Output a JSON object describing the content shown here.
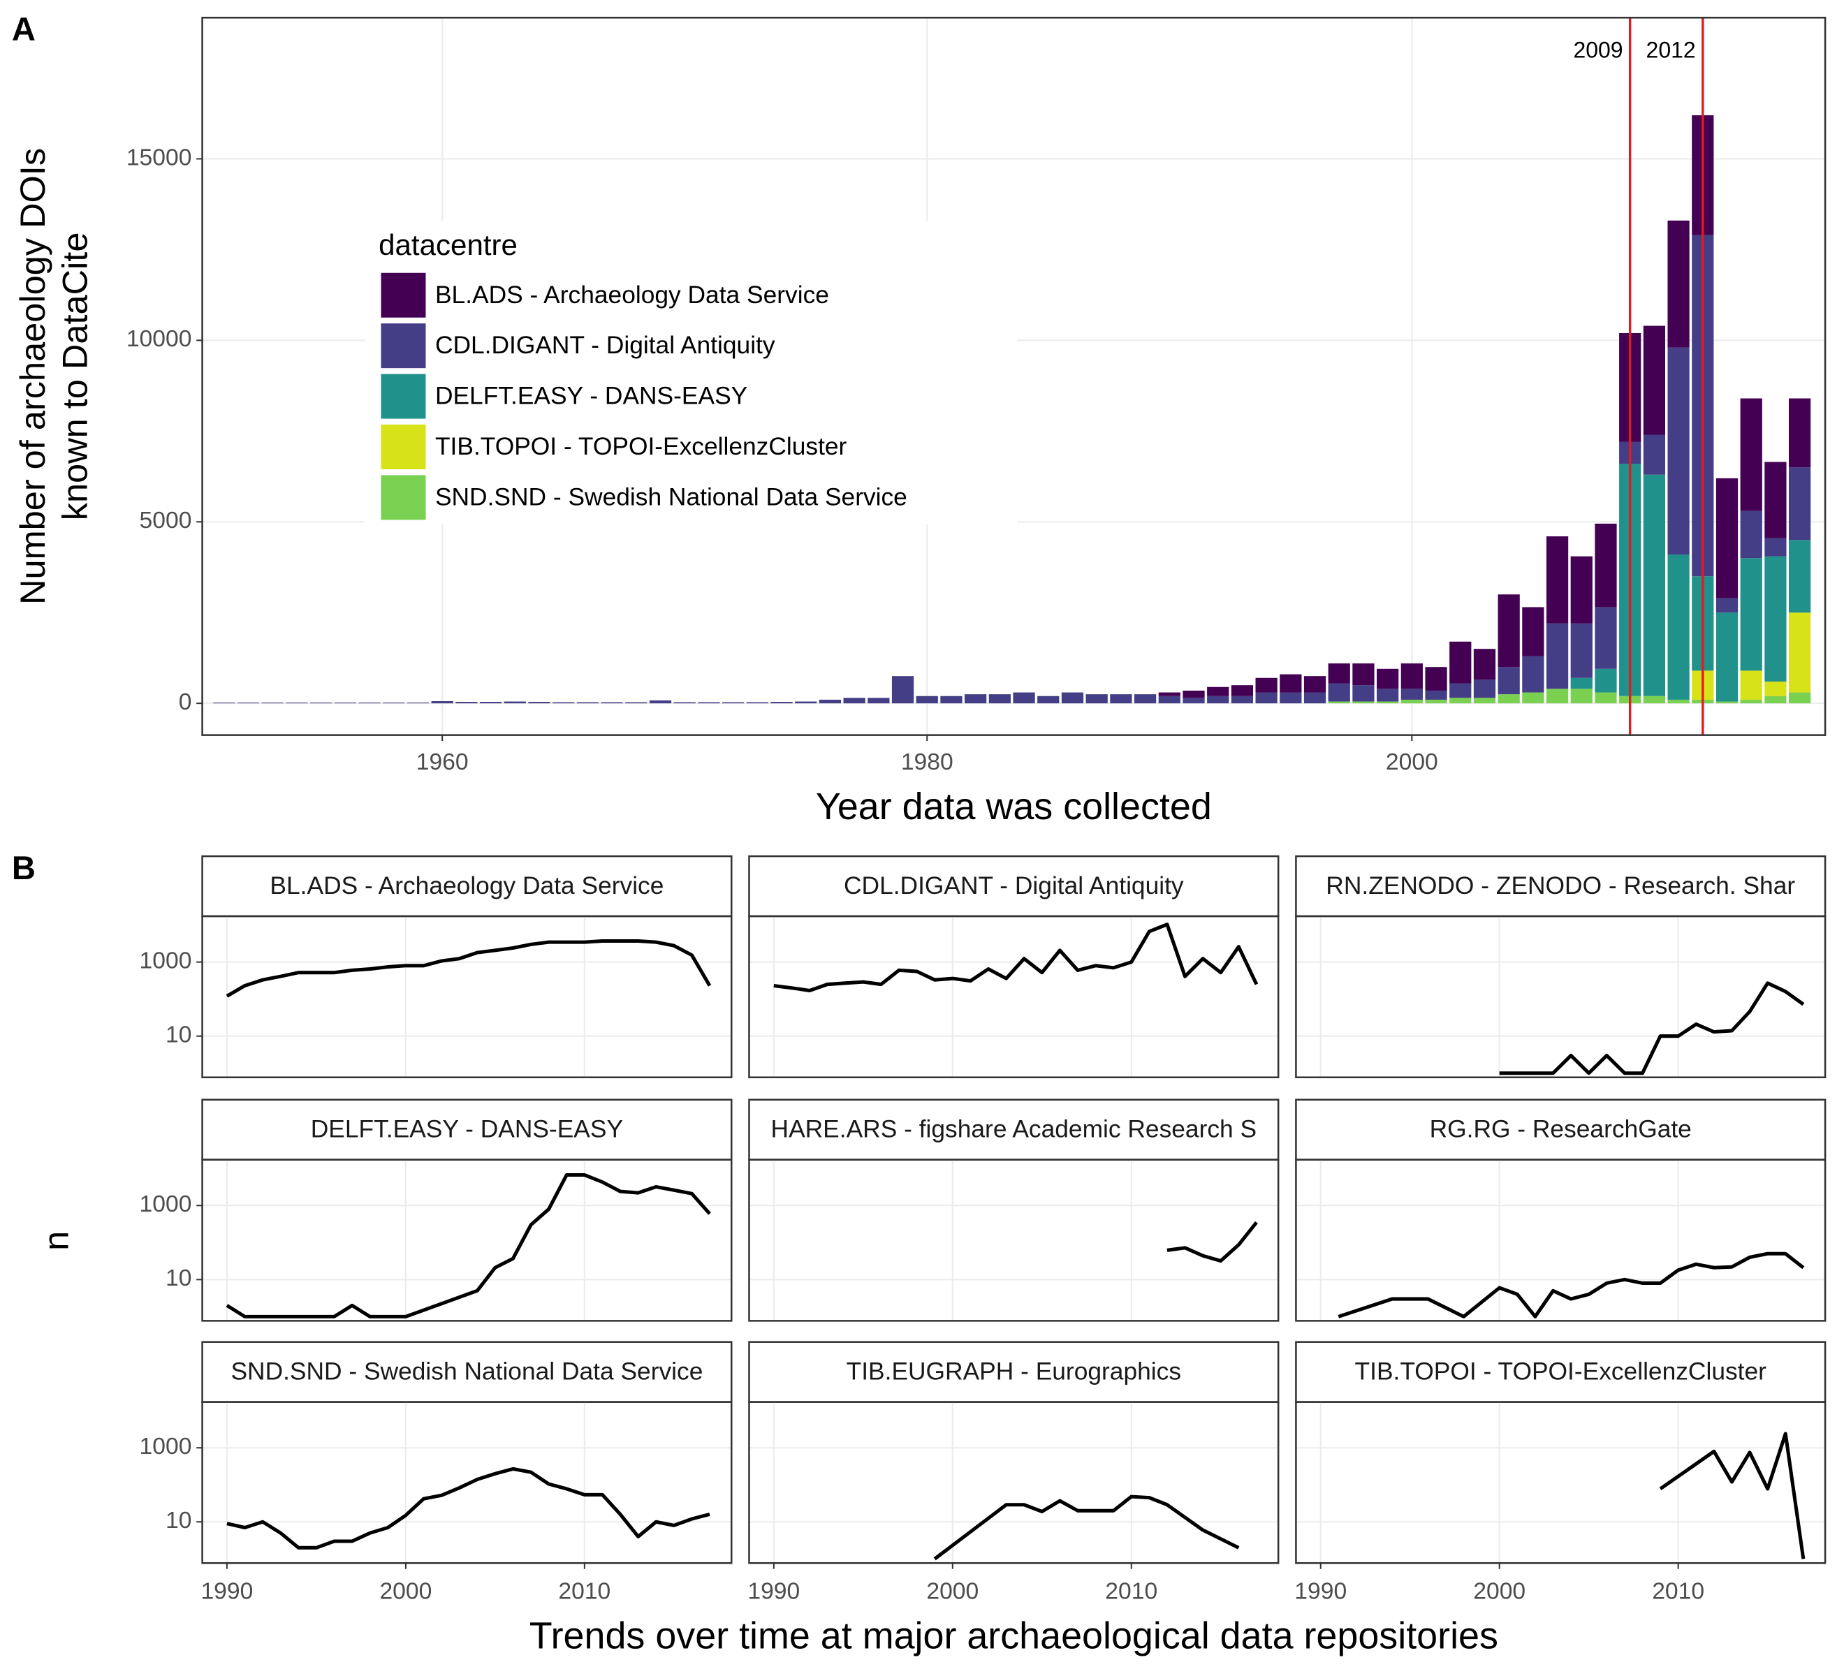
{
  "chart_data": [
    {
      "type": "stacked_bar",
      "panel_label": "A",
      "y_label": [
        "Number of archaeology DOIs",
        "known to DataCite"
      ],
      "x_label": "Year data was collected",
      "legend_title": "datacentre",
      "xlim": [
        1950.1,
        2017.05
      ],
      "xticks": [
        1960,
        1980,
        2000
      ],
      "ylim": [
        -875,
        18890
      ],
      "yticks": [
        0,
        5000,
        10000,
        15000
      ],
      "grid": true,
      "x": [
        1951,
        1952,
        1953,
        1954,
        1955,
        1956,
        1957,
        1958,
        1959,
        1960,
        1961,
        1962,
        1963,
        1964,
        1965,
        1966,
        1967,
        1968,
        1969,
        1970,
        1971,
        1972,
        1973,
        1974,
        1975,
        1976,
        1977,
        1978,
        1979,
        1980,
        1981,
        1982,
        1983,
        1984,
        1985,
        1986,
        1987,
        1988,
        1989,
        1990,
        1991,
        1992,
        1993,
        1994,
        1995,
        1996,
        1997,
        1998,
        1999,
        2000,
        2001,
        2002,
        2003,
        2004,
        2005,
        2006,
        2007,
        2008,
        2009,
        2010,
        2011,
        2012,
        2013,
        2014,
        2015,
        2016
      ],
      "series": [
        {
          "name": "BL.ADS - Archaeology Data Service",
          "color": "#440154",
          "values": [
            0,
            0,
            0,
            0,
            0,
            0,
            0,
            0,
            0,
            0,
            0,
            0,
            0,
            0,
            0,
            0,
            0,
            0,
            0,
            0,
            0,
            0,
            0,
            0,
            0,
            0,
            0,
            0,
            0,
            0,
            0,
            0,
            0,
            0,
            0,
            0,
            0,
            0,
            0,
            100,
            200,
            250,
            300,
            400,
            500,
            450,
            550,
            600,
            550,
            700,
            650,
            1150,
            850,
            2000,
            1350,
            2400,
            1850,
            2300,
            3000,
            3000,
            3500,
            3300,
            3300,
            3100,
            2100,
            1900
          ]
        },
        {
          "name": "CDL.DIGANT - Digital Antiquity",
          "color": "#433E85",
          "values": [
            20,
            20,
            20,
            20,
            20,
            20,
            20,
            20,
            20,
            60,
            40,
            40,
            50,
            40,
            30,
            30,
            30,
            30,
            80,
            30,
            30,
            30,
            30,
            40,
            50,
            100,
            150,
            150,
            750,
            200,
            200,
            250,
            250,
            300,
            200,
            300,
            250,
            250,
            250,
            200,
            150,
            200,
            200,
            300,
            300,
            300,
            500,
            450,
            350,
            300,
            250,
            400,
            500,
            750,
            1000,
            1800,
            1500,
            1700,
            600,
            1100,
            5700,
            9400,
            400,
            1300,
            500,
            2000
          ]
        },
        {
          "name": "DELFT.EASY - DANS-EASY",
          "color": "#21918C",
          "values": [
            0,
            0,
            0,
            0,
            0,
            0,
            0,
            0,
            0,
            0,
            0,
            0,
            0,
            0,
            0,
            0,
            0,
            0,
            0,
            0,
            0,
            0,
            0,
            0,
            0,
            0,
            0,
            0,
            0,
            0,
            0,
            0,
            0,
            0,
            0,
            0,
            0,
            0,
            0,
            0,
            0,
            0,
            0,
            0,
            0,
            0,
            0,
            0,
            0,
            0,
            0,
            0,
            0,
            0,
            0,
            0,
            300,
            650,
            6400,
            6100,
            4000,
            2600,
            2450,
            3100,
            3450,
            2000
          ]
        },
        {
          "name": "TIB.TOPOI - TOPOI-ExcellenzCluster",
          "color": "#D8E219",
          "values": [
            0,
            0,
            0,
            0,
            0,
            0,
            0,
            0,
            0,
            0,
            0,
            0,
            0,
            0,
            0,
            0,
            0,
            0,
            0,
            0,
            0,
            0,
            0,
            0,
            0,
            0,
            0,
            0,
            0,
            0,
            0,
            0,
            0,
            0,
            0,
            0,
            0,
            0,
            0,
            0,
            0,
            0,
            0,
            0,
            0,
            0,
            0,
            0,
            0,
            0,
            0,
            0,
            0,
            0,
            0,
            0,
            0,
            0,
            0,
            0,
            0,
            800,
            0,
            800,
            400,
            2200
          ]
        },
        {
          "name": "SND.SND - Swedish National Data Service",
          "color": "#7AD151",
          "values": [
            0,
            0,
            0,
            0,
            0,
            0,
            0,
            0,
            0,
            0,
            0,
            0,
            0,
            0,
            0,
            0,
            0,
            0,
            0,
            0,
            0,
            0,
            0,
            0,
            0,
            0,
            0,
            0,
            0,
            0,
            0,
            0,
            0,
            0,
            0,
            0,
            0,
            0,
            0,
            0,
            0,
            0,
            0,
            0,
            0,
            0,
            50,
            50,
            50,
            100,
            100,
            150,
            150,
            250,
            300,
            400,
            400,
            300,
            200,
            200,
            100,
            100,
            50,
            100,
            200,
            300
          ]
        }
      ],
      "annotations": [
        {
          "x": 2009,
          "text": "2009",
          "color": "#e41a1c"
        },
        {
          "x": 2012,
          "text": "2012",
          "color": "#e41a1c"
        }
      ]
    },
    {
      "type": "facet_line",
      "panel_label": "B",
      "y_label": "n",
      "x_label": "Trends over time at major archaeological data repositories",
      "xlim": [
        1988.62,
        2018.22
      ],
      "xticks": [
        1990,
        2000,
        2010
      ],
      "ylim": [
        0.77,
        17300
      ],
      "yticks": [
        10,
        1000
      ],
      "log_y": true,
      "grid": true,
      "color": "#000000",
      "facets": [
        {
          "title": "BL.ADS - Archaeology Data Service",
          "x": [
            1990,
            1991,
            1992,
            1993,
            1994,
            1995,
            1996,
            1997,
            1998,
            1999,
            2000,
            2001,
            2002,
            2003,
            2004,
            2005,
            2006,
            2007,
            2008,
            2009,
            2010,
            2011,
            2012,
            2013,
            2014,
            2015,
            2016,
            2017
          ],
          "values": [
            120,
            230,
            330,
            410,
            520,
            520,
            520,
            600,
            650,
            740,
            800,
            800,
            1070,
            1240,
            1800,
            2070,
            2400,
            3000,
            3450,
            3450,
            3450,
            3700,
            3700,
            3700,
            3450,
            2780,
            1540,
            230
          ]
        },
        {
          "title": "CDL.DIGANT - Digital Antiquity",
          "x": [
            1990,
            1991,
            1992,
            1993,
            1994,
            1995,
            1996,
            1997,
            1998,
            1999,
            2000,
            2001,
            2002,
            2003,
            2004,
            2005,
            2006,
            2007,
            2008,
            2009,
            2010,
            2011,
            2012,
            2013,
            2014,
            2015,
            2016,
            2017
          ],
          "values": [
            230,
            200,
            170,
            250,
            270,
            290,
            250,
            600,
            560,
            330,
            360,
            310,
            650,
            360,
            1240,
            520,
            2070,
            600,
            800,
            700,
            1000,
            6700,
            10400,
            410,
            1240,
            520,
            2600,
            250
          ]
        },
        {
          "title": "RN.ZENODO - ZENODO - Research. Shar",
          "x": [
            2000,
            2001,
            2002,
            2003,
            2004,
            2005,
            2006,
            2007,
            2008,
            2009,
            2010,
            2011,
            2012,
            2013,
            2014,
            2015,
            2016,
            2017
          ],
          "values": [
            1,
            1,
            1,
            1,
            3,
            1,
            3,
            1,
            1,
            10,
            10,
            21,
            13,
            14,
            46,
            270,
            160,
            72
          ]
        },
        {
          "title": "DELFT.EASY - DANS-EASY",
          "x": [
            1990,
            1991,
            1992,
            1993,
            1994,
            1995,
            1996,
            1997,
            1998,
            1999,
            2000,
            2004,
            2005,
            2006,
            2007,
            2008,
            2009,
            2010,
            2011,
            2012,
            2013,
            2014,
            2015,
            2016,
            2017
          ],
          "values": [
            2,
            1,
            1,
            1,
            1,
            1,
            1,
            2,
            1,
            1,
            1,
            5,
            21,
            37,
            300,
            800,
            6700,
            6700,
            4300,
            2400,
            2200,
            3200,
            2600,
            2100,
            600
          ]
        },
        {
          "title": "HARE.ARS - figshare Academic Research S",
          "x": [
            2012,
            2013,
            2014,
            2015,
            2016,
            2017
          ],
          "values": [
            62,
            72,
            44,
            32,
            87,
            350
          ]
        },
        {
          "title": "RG.RG - ResearchGate",
          "x": [
            1991,
            1994,
            1996,
            1998,
            2000,
            2001,
            2002,
            2003,
            2004,
            2005,
            2006,
            2007,
            2008,
            2009,
            2010,
            2011,
            2012,
            2013,
            2014,
            2015,
            2016,
            2017
          ],
          "values": [
            1,
            3,
            3,
            1,
            6,
            4,
            1,
            5,
            3,
            4,
            8,
            10,
            8,
            8,
            18,
            26,
            21,
            22,
            40,
            50,
            50,
            21
          ]
        },
        {
          "title": "SND.SND - Swedish National Data Service",
          "x": [
            1990,
            1991,
            1992,
            1993,
            1994,
            1995,
            1996,
            1997,
            1998,
            1999,
            2000,
            2001,
            2002,
            2003,
            2004,
            2005,
            2006,
            2007,
            2008,
            2009,
            2010,
            2011,
            2012,
            2013,
            2014,
            2015,
            2016,
            2017
          ],
          "values": [
            9,
            7,
            10,
            5,
            2,
            2,
            3,
            3,
            5,
            7,
            15,
            42,
            52,
            83,
            140,
            200,
            270,
            220,
            105,
            78,
            54,
            54,
            16,
            4,
            10,
            8,
            12,
            16
          ]
        },
        {
          "title": "TIB.EUGRAPH - Eurographics",
          "x": [
            1999,
            2003,
            2004,
            2005,
            2006,
            2007,
            2008,
            2009,
            2010,
            2011,
            2012,
            2014,
            2016
          ],
          "values": [
            1,
            29,
            29,
            19,
            37,
            20,
            20,
            20,
            48,
            45,
            29,
            6,
            2
          ]
        },
        {
          "title": "TIB.TOPOI - TOPOI-ExcellenzCluster",
          "x": [
            2009,
            2012,
            2013,
            2014,
            2015,
            2016,
            2017
          ],
          "values": [
            78,
            800,
            120,
            750,
            78,
            2400,
            1
          ]
        }
      ]
    }
  ]
}
